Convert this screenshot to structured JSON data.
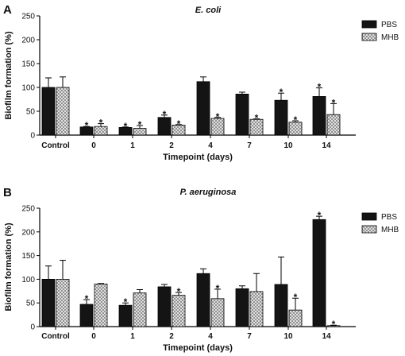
{
  "legend_position": "top-right",
  "colors": {
    "pbs_fill": "#141414",
    "mhb_fill": "#ffffff",
    "mhb_hatch": "#8a8a8a",
    "axis": "#000000"
  },
  "chart_data": [
    {
      "panel": "A",
      "type": "bar",
      "title": "E. coli",
      "xlabel": "Timepoint (days)",
      "ylabel": "Biofilm formation (%)",
      "ylim": [
        0,
        250
      ],
      "yticks": [
        0,
        50,
        100,
        150,
        200,
        250
      ],
      "categories": [
        "Control",
        "0",
        "1",
        "2",
        "4",
        "7",
        "10",
        "14"
      ],
      "series": [
        {
          "name": "PBS",
          "pattern": "solid",
          "values": [
            100,
            17,
            16,
            37,
            112,
            86,
            73,
            81
          ],
          "errors": [
            20,
            1,
            1,
            5,
            10,
            4,
            15,
            18
          ],
          "significant": [
            false,
            true,
            true,
            true,
            false,
            false,
            true,
            true
          ]
        },
        {
          "name": "MHB",
          "pattern": "hatched",
          "values": [
            100,
            18,
            14,
            21,
            35,
            33,
            27,
            43
          ],
          "errors": [
            22,
            6,
            6,
            1,
            2,
            1,
            3,
            23
          ],
          "significant": [
            false,
            true,
            true,
            true,
            true,
            true,
            true,
            true
          ]
        }
      ],
      "grid": false
    },
    {
      "panel": "B",
      "type": "bar",
      "title": "P. aeruginosa",
      "xlabel": "Timepoint (days)",
      "ylabel": "Biofilm formation (%)",
      "ylim": [
        0,
        250
      ],
      "yticks": [
        0,
        50,
        100,
        150,
        200,
        250
      ],
      "categories": [
        "Control",
        "0",
        "1",
        "2",
        "4",
        "7",
        "10",
        "14"
      ],
      "series": [
        {
          "name": "PBS",
          "pattern": "solid",
          "values": [
            100,
            47,
            45,
            84,
            112,
            80,
            89,
            226
          ],
          "errors": [
            28,
            10,
            5,
            5,
            10,
            6,
            58,
            7
          ],
          "significant": [
            false,
            true,
            true,
            false,
            false,
            false,
            false,
            true
          ]
        },
        {
          "name": "MHB",
          "pattern": "hatched",
          "values": [
            100,
            90,
            71,
            66,
            59,
            74,
            35,
            2
          ],
          "errors": [
            40,
            1,
            7,
            6,
            20,
            38,
            25,
            1
          ],
          "significant": [
            false,
            false,
            false,
            true,
            true,
            false,
            true,
            true
          ]
        }
      ],
      "grid": false
    }
  ]
}
